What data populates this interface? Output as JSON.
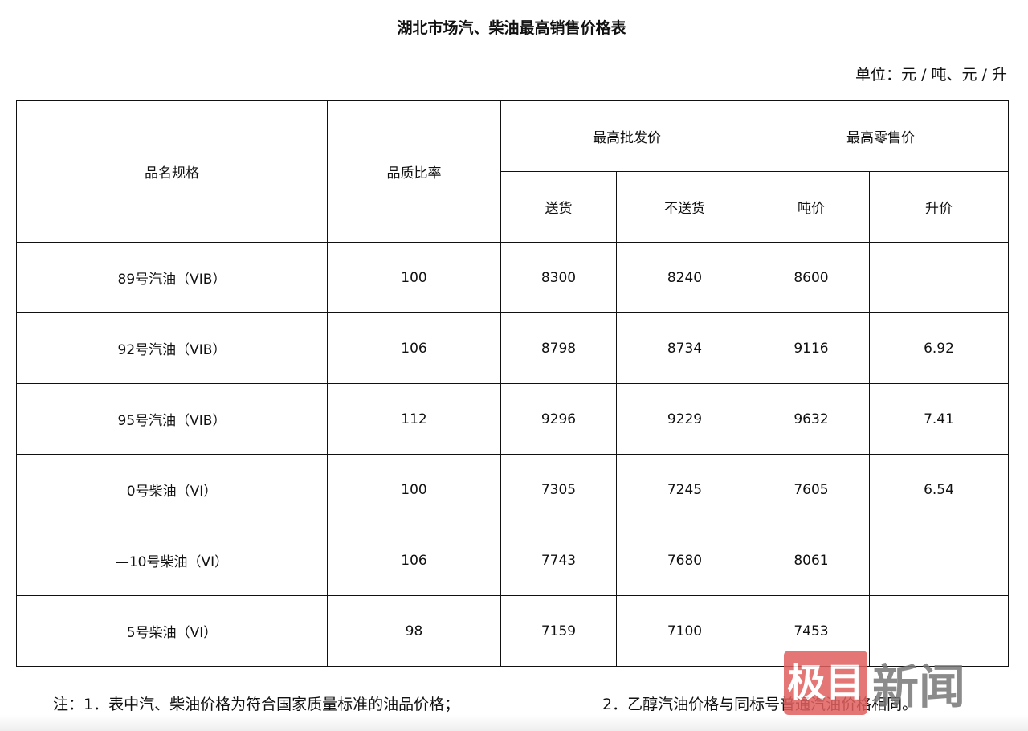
{
  "title": "湖北市场汽、柴油最高销售价格表",
  "unit": "单位：元 / 吨、元 / 升",
  "table": {
    "headers": {
      "name": "品名规格",
      "quality_ratio": "品质比率",
      "wholesale": "最高批发价",
      "retail": "最高零售价",
      "delivered": "送货",
      "not_delivered": "不送货",
      "per_ton": "吨价",
      "per_liter": "升价"
    },
    "rows": [
      {
        "name": "89号汽油（VIB）",
        "ratio": "100",
        "delivered": "8300",
        "not_delivered": "8240",
        "per_ton": "8600",
        "per_liter": ""
      },
      {
        "name": "92号汽油（VIB）",
        "ratio": "106",
        "delivered": "8798",
        "not_delivered": "8734",
        "per_ton": "9116",
        "per_liter": "6.92"
      },
      {
        "name": "95号汽油（VIB）",
        "ratio": "112",
        "delivered": "9296",
        "not_delivered": "9229",
        "per_ton": "9632",
        "per_liter": "7.41"
      },
      {
        "name": "0号柴油（VI）",
        "ratio": "100",
        "delivered": "7305",
        "not_delivered": "7245",
        "per_ton": "7605",
        "per_liter": "6.54"
      },
      {
        "name": "—10号柴油（VI）",
        "ratio": "106",
        "delivered": "7743",
        "not_delivered": "7680",
        "per_ton": "8061",
        "per_liter": ""
      },
      {
        "name": "5号柴油（VI）",
        "ratio": "98",
        "delivered": "7159",
        "not_delivered": "7100",
        "per_ton": "7453",
        "per_liter": ""
      }
    ]
  },
  "notes": {
    "note1": "注：1．表中汽、柴油价格为符合国家质量标准的油品价格；",
    "note2": "2．乙醇汽油价格与同标号普通汽油价格相同。"
  },
  "watermark": {
    "part1": "极目",
    "part2": "新闻",
    "accent": "#e0605e"
  }
}
